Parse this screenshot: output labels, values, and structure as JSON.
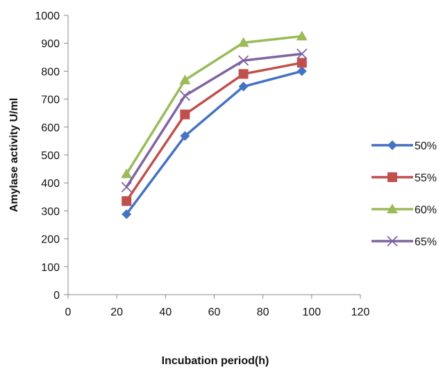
{
  "chart_data": {
    "type": "line",
    "title": "",
    "xlabel": "Incubation period(h)",
    "ylabel": "Amylase activity U/ml",
    "xlim": [
      0,
      120
    ],
    "ylim": [
      0,
      1000
    ],
    "x_ticks": [
      0,
      20,
      40,
      60,
      80,
      100,
      120
    ],
    "y_ticks": [
      0,
      100,
      200,
      300,
      400,
      500,
      600,
      700,
      800,
      900,
      1000
    ],
    "grid": false,
    "legend_position": "right",
    "x": [
      24,
      48,
      72,
      96
    ],
    "series": [
      {
        "name": "50%",
        "values": [
          288,
          568,
          745,
          800
        ],
        "color": "#4472C4",
        "marker": "diamond"
      },
      {
        "name": "55%",
        "values": [
          335,
          645,
          790,
          830
        ],
        "color": "#C0504D",
        "marker": "square"
      },
      {
        "name": "60%",
        "values": [
          432,
          768,
          902,
          925
        ],
        "color": "#9BBB59",
        "marker": "triangle"
      },
      {
        "name": "65%",
        "values": [
          385,
          712,
          838,
          862
        ],
        "color": "#8064A2",
        "marker": "x"
      }
    ]
  }
}
